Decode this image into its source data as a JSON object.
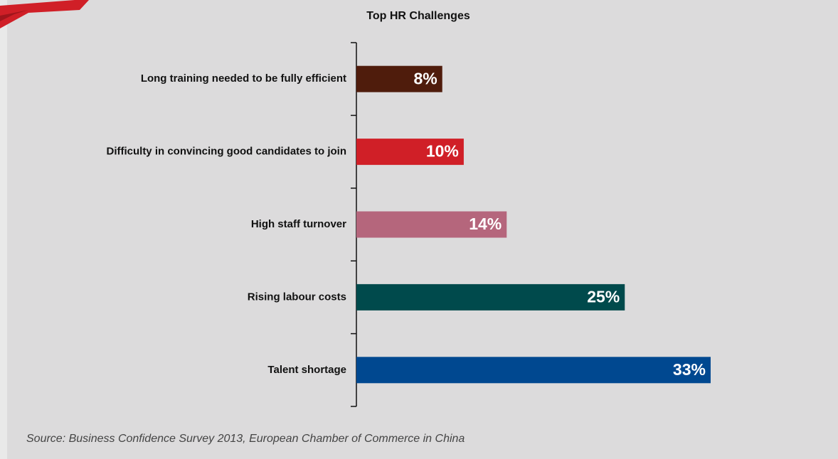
{
  "chart_data": {
    "type": "bar",
    "orientation": "horizontal",
    "title": "Top HR Challenges",
    "categories": [
      "Long training needed to be fully efficient",
      "Difficulty in convincing good candidates to join",
      "High staff turnover",
      "Rising labour costs",
      "Talent shortage"
    ],
    "values": [
      8,
      10,
      14,
      25,
      33
    ],
    "value_labels": [
      "8%",
      "10%",
      "14%",
      "25%",
      "33%"
    ],
    "colors": [
      "#4f1c0c",
      "#d01f27",
      "#b5667c",
      "#004a4c",
      "#004890"
    ],
    "source": "Source: Business Confidence Survey 2013, European Chamber of Commerce in China"
  }
}
